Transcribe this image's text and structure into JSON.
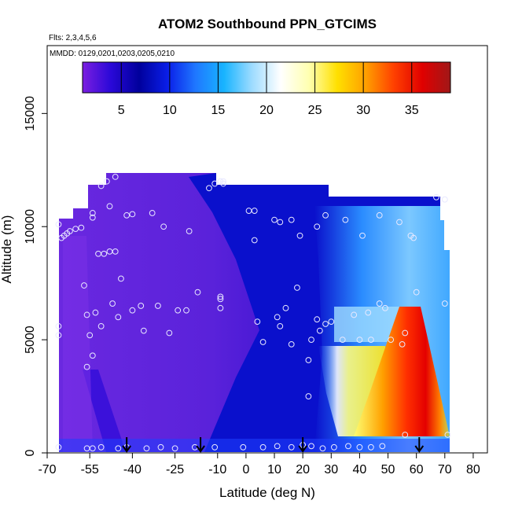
{
  "chart_data": {
    "type": "heatmap",
    "title": "ATOM2 Southbound PPN_GTCIMS",
    "subtitle_flights": "Flts: 2,3,4,5,6",
    "subtitle_dates": "MMDD: 0129,0201,0203,0205,0210",
    "xlabel": "Latitude (deg N)",
    "ylabel": "Altitude (m)",
    "xlim": [
      -70,
      85
    ],
    "ylim": [
      0,
      18000
    ],
    "x_ticks": [
      -70,
      -55,
      -40,
      -25,
      -10,
      0,
      10,
      20,
      30,
      40,
      50,
      60,
      70,
      80
    ],
    "x_tick_labels": [
      "-70",
      "-55",
      "-40",
      "-25",
      "-10",
      "0",
      "10",
      "20",
      "30",
      "40",
      "50",
      "60",
      "70",
      "80"
    ],
    "y_ticks": [
      0,
      5000,
      10000,
      15000
    ],
    "y_tick_labels": [
      "0",
      "5000",
      "10000",
      "15000"
    ],
    "colorbar": {
      "range": [
        1,
        39
      ],
      "ticks": [
        5,
        10,
        15,
        20,
        25,
        30,
        35
      ],
      "tick_labels": [
        "5",
        "10",
        "15",
        "20",
        "25",
        "30",
        "35"
      ],
      "colors": [
        "#7b1fe0",
        "#2a08d8",
        "#00009c",
        "#0a1ee8",
        "#1f78ff",
        "#18b4ff",
        "#9fdcff",
        "#ffffff",
        "#ffffb0",
        "#ffe000",
        "#ffa000",
        "#ff4000",
        "#e00000",
        "#a01818"
      ]
    },
    "colors": {
      "southern_background": "#6a28e0",
      "mid_band": "#0a10cc",
      "northern_light": "#40a8ff",
      "plume_core": "#e40000"
    },
    "flight_markers_latitude": [
      -42,
      -16,
      20,
      61
    ],
    "sample_points": [
      {
        "lat": -66,
        "alt": 10100
      },
      {
        "lat": -65,
        "alt": 9500
      },
      {
        "lat": -64,
        "alt": 9600
      },
      {
        "lat": -63,
        "alt": 9700
      },
      {
        "lat": -62,
        "alt": 9800
      },
      {
        "lat": -60,
        "alt": 9900
      },
      {
        "lat": -58,
        "alt": 9950
      },
      {
        "lat": -54,
        "alt": 10400
      },
      {
        "lat": -54,
        "alt": 10600
      },
      {
        "lat": -52,
        "alt": 8800
      },
      {
        "lat": -50,
        "alt": 8800
      },
      {
        "lat": -48,
        "alt": 8900
      },
      {
        "lat": -46,
        "alt": 8900
      },
      {
        "lat": -51,
        "alt": 11800
      },
      {
        "lat": -49,
        "alt": 12000
      },
      {
        "lat": -46,
        "alt": 12200
      },
      {
        "lat": -48,
        "alt": 10900
      },
      {
        "lat": -42,
        "alt": 10500
      },
      {
        "lat": -40,
        "alt": 10550
      },
      {
        "lat": -33,
        "alt": 10600
      },
      {
        "lat": -29,
        "alt": 10000
      },
      {
        "lat": -20,
        "alt": 9800
      },
      {
        "lat": -13,
        "alt": 11700
      },
      {
        "lat": -11,
        "alt": 11900
      },
      {
        "lat": -9,
        "alt": 12000
      },
      {
        "lat": -8,
        "alt": 12000
      },
      {
        "lat": -8,
        "alt": 11900
      },
      {
        "lat": 1,
        "alt": 10700
      },
      {
        "lat": 3,
        "alt": 10700
      },
      {
        "lat": 3,
        "alt": 9400
      },
      {
        "lat": 10,
        "alt": 10300
      },
      {
        "lat": 12,
        "alt": 10200
      },
      {
        "lat": 16,
        "alt": 10300
      },
      {
        "lat": 19,
        "alt": 9600
      },
      {
        "lat": 25,
        "alt": 10000
      },
      {
        "lat": 28,
        "alt": 10500
      },
      {
        "lat": 35,
        "alt": 10300
      },
      {
        "lat": 41,
        "alt": 9600
      },
      {
        "lat": 47,
        "alt": 10500
      },
      {
        "lat": 54,
        "alt": 10200
      },
      {
        "lat": 58,
        "alt": 9600
      },
      {
        "lat": 59,
        "alt": 9500
      },
      {
        "lat": 67,
        "alt": 11300
      },
      {
        "lat": 70,
        "alt": 11200
      },
      {
        "lat": -66,
        "alt": 5600
      },
      {
        "lat": -66,
        "alt": 5200
      },
      {
        "lat": -57,
        "alt": 7400
      },
      {
        "lat": -56,
        "alt": 6100
      },
      {
        "lat": -55,
        "alt": 5200
      },
      {
        "lat": -54,
        "alt": 4300
      },
      {
        "lat": -56,
        "alt": 3800
      },
      {
        "lat": -53,
        "alt": 6200
      },
      {
        "lat": -51,
        "alt": 5600
      },
      {
        "lat": -47,
        "alt": 6600
      },
      {
        "lat": -45,
        "alt": 6000
      },
      {
        "lat": -44,
        "alt": 7700
      },
      {
        "lat": -40,
        "alt": 6300
      },
      {
        "lat": -37,
        "alt": 6500
      },
      {
        "lat": -36,
        "alt": 5400
      },
      {
        "lat": -31,
        "alt": 6500
      },
      {
        "lat": -27,
        "alt": 5300
      },
      {
        "lat": -24,
        "alt": 6300
      },
      {
        "lat": -21,
        "alt": 6300
      },
      {
        "lat": -17,
        "alt": 7100
      },
      {
        "lat": -9,
        "alt": 6900
      },
      {
        "lat": -9,
        "alt": 6800
      },
      {
        "lat": -9,
        "alt": 6400
      },
      {
        "lat": 4,
        "alt": 5800
      },
      {
        "lat": 6,
        "alt": 4900
      },
      {
        "lat": 11,
        "alt": 6000
      },
      {
        "lat": 12,
        "alt": 5600
      },
      {
        "lat": 14,
        "alt": 6400
      },
      {
        "lat": 16,
        "alt": 4800
      },
      {
        "lat": 18,
        "alt": 7300
      },
      {
        "lat": 22,
        "alt": 4100
      },
      {
        "lat": 23,
        "alt": 5000
      },
      {
        "lat": 25,
        "alt": 5900
      },
      {
        "lat": 26,
        "alt": 5400
      },
      {
        "lat": 28,
        "alt": 5700
      },
      {
        "lat": 30,
        "alt": 5800
      },
      {
        "lat": 34,
        "alt": 5000
      },
      {
        "lat": 38,
        "alt": 6100
      },
      {
        "lat": 40,
        "alt": 5000
      },
      {
        "lat": 43,
        "alt": 6200
      },
      {
        "lat": 44,
        "alt": 5000
      },
      {
        "lat": 47,
        "alt": 6600
      },
      {
        "lat": 49,
        "alt": 6400
      },
      {
        "lat": 51,
        "alt": 5000
      },
      {
        "lat": 55,
        "alt": 4800
      },
      {
        "lat": 56,
        "alt": 5300
      },
      {
        "lat": 60,
        "alt": 7100
      },
      {
        "lat": 70,
        "alt": 6600
      },
      {
        "lat": 22,
        "alt": 2500
      },
      {
        "lat": 56,
        "alt": 800
      },
      {
        "lat": 71,
        "alt": 800
      },
      {
        "lat": -66,
        "alt": 250
      },
      {
        "lat": -56,
        "alt": 200
      },
      {
        "lat": -54,
        "alt": 200
      },
      {
        "lat": -51,
        "alt": 250
      },
      {
        "lat": -45,
        "alt": 200
      },
      {
        "lat": -42,
        "alt": 250
      },
      {
        "lat": -35,
        "alt": 200
      },
      {
        "lat": -30,
        "alt": 250
      },
      {
        "lat": -25,
        "alt": 200
      },
      {
        "lat": -18,
        "alt": 250
      },
      {
        "lat": -11,
        "alt": 250
      },
      {
        "lat": -1,
        "alt": 250
      },
      {
        "lat": 6,
        "alt": 250
      },
      {
        "lat": 11,
        "alt": 300
      },
      {
        "lat": 16,
        "alt": 250
      },
      {
        "lat": 20,
        "alt": 350
      },
      {
        "lat": 23,
        "alt": 300
      },
      {
        "lat": 27,
        "alt": 200
      },
      {
        "lat": 31,
        "alt": 250
      },
      {
        "lat": 36,
        "alt": 300
      },
      {
        "lat": 40,
        "alt": 250
      },
      {
        "lat": 44,
        "alt": 250
      },
      {
        "lat": 48,
        "alt": 300
      }
    ]
  }
}
